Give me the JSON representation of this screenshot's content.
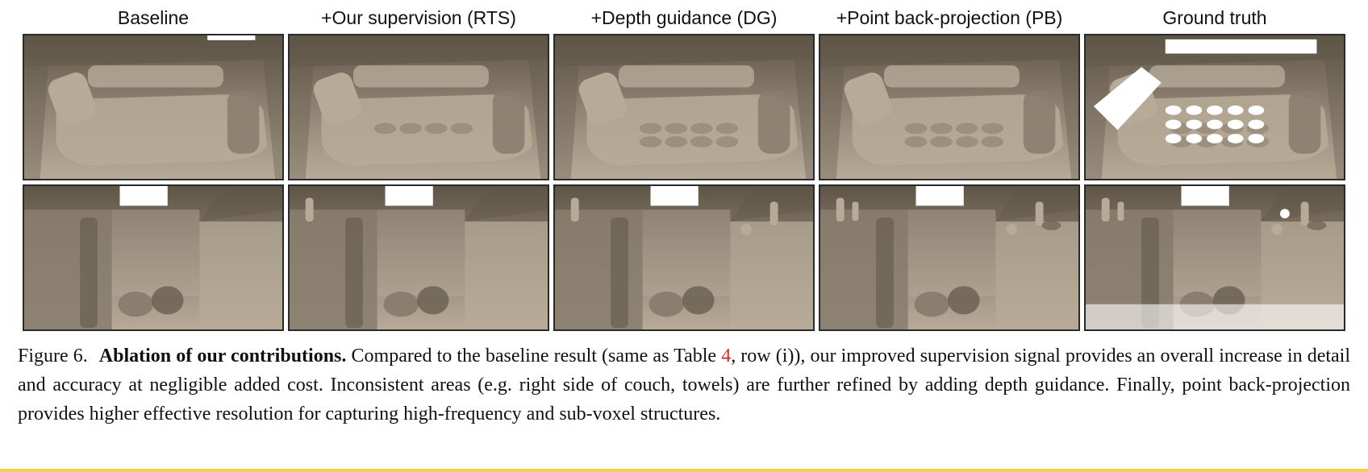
{
  "columns": [
    "Baseline",
    "+Our supervision (RTS)",
    "+Depth guidance (DG)",
    "+Point back-projection (PB)",
    "Ground truth"
  ],
  "rows": [
    "couch scene",
    "bathroom scene"
  ],
  "caption": {
    "label": "Figure 6.",
    "title": "Ablation of our contributions.",
    "text_before_ref": "Compared to the baseline result (same as Table ",
    "ref": "4",
    "text_after_ref": ", row (i)), our improved supervision signal provides an overall increase in detail and accuracy at negligible added cost. Inconsistent areas (e.g. right side of couch, towels) are further refined by adding depth guidance. Finally, point back-projection provides higher effective resolution for capturing high-frequency and sub-voxel structures."
  },
  "colors": {
    "mesh_base": "#8a7e6e",
    "mesh_light": "#b7ab98",
    "mesh_dark": "#5f5547",
    "reference_link": "#d42a20",
    "bottom_rule": "#f2d24a"
  }
}
